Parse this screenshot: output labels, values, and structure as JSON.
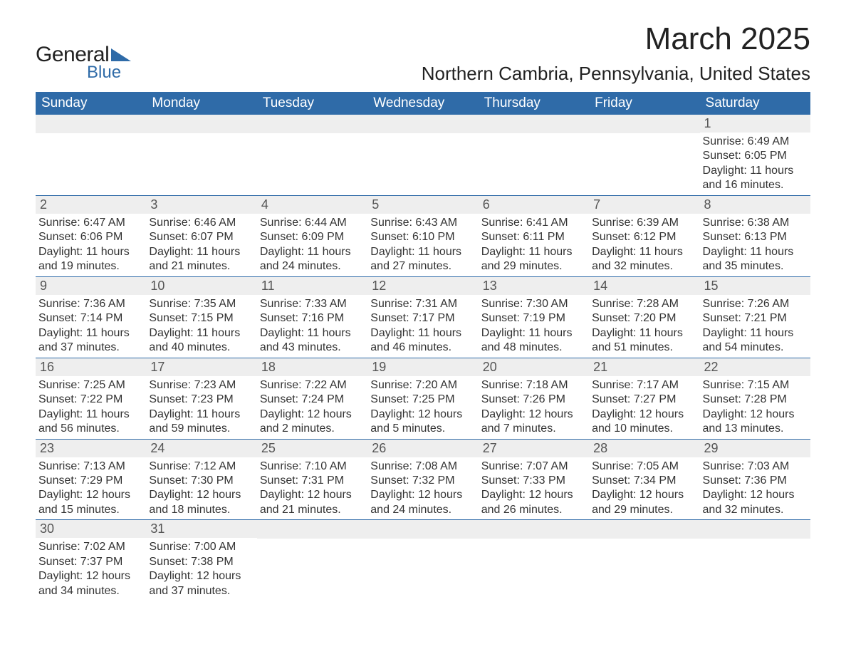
{
  "brand": {
    "word1": "General",
    "word2": "Blue",
    "word1_color": "#222222",
    "word2_color": "#2f6ba8",
    "triangle_color": "#2f6ba8"
  },
  "title": "March 2025",
  "location": "Northern Cambria, Pennsylvania, United States",
  "colors": {
    "header_bg": "#2f6ba8",
    "header_text": "#ffffff",
    "daynum_bg": "#eeeeee",
    "daynum_text": "#555555",
    "body_text": "#333333",
    "row_divider": "#2f6ba8",
    "page_bg": "#ffffff"
  },
  "typography": {
    "title_fontsize": 44,
    "location_fontsize": 26,
    "weekday_fontsize": 19,
    "daynum_fontsize": 18,
    "body_fontsize": 16,
    "font_family": "Arial"
  },
  "weekdays": [
    "Sunday",
    "Monday",
    "Tuesday",
    "Wednesday",
    "Thursday",
    "Friday",
    "Saturday"
  ],
  "weeks": [
    [
      null,
      null,
      null,
      null,
      null,
      null,
      {
        "n": "1",
        "sunrise": "6:49 AM",
        "sunset": "6:05 PM",
        "daylight": "11 hours and 16 minutes."
      }
    ],
    [
      {
        "n": "2",
        "sunrise": "6:47 AM",
        "sunset": "6:06 PM",
        "daylight": "11 hours and 19 minutes."
      },
      {
        "n": "3",
        "sunrise": "6:46 AM",
        "sunset": "6:07 PM",
        "daylight": "11 hours and 21 minutes."
      },
      {
        "n": "4",
        "sunrise": "6:44 AM",
        "sunset": "6:09 PM",
        "daylight": "11 hours and 24 minutes."
      },
      {
        "n": "5",
        "sunrise": "6:43 AM",
        "sunset": "6:10 PM",
        "daylight": "11 hours and 27 minutes."
      },
      {
        "n": "6",
        "sunrise": "6:41 AM",
        "sunset": "6:11 PM",
        "daylight": "11 hours and 29 minutes."
      },
      {
        "n": "7",
        "sunrise": "6:39 AM",
        "sunset": "6:12 PM",
        "daylight": "11 hours and 32 minutes."
      },
      {
        "n": "8",
        "sunrise": "6:38 AM",
        "sunset": "6:13 PM",
        "daylight": "11 hours and 35 minutes."
      }
    ],
    [
      {
        "n": "9",
        "sunrise": "7:36 AM",
        "sunset": "7:14 PM",
        "daylight": "11 hours and 37 minutes."
      },
      {
        "n": "10",
        "sunrise": "7:35 AM",
        "sunset": "7:15 PM",
        "daylight": "11 hours and 40 minutes."
      },
      {
        "n": "11",
        "sunrise": "7:33 AM",
        "sunset": "7:16 PM",
        "daylight": "11 hours and 43 minutes."
      },
      {
        "n": "12",
        "sunrise": "7:31 AM",
        "sunset": "7:17 PM",
        "daylight": "11 hours and 46 minutes."
      },
      {
        "n": "13",
        "sunrise": "7:30 AM",
        "sunset": "7:19 PM",
        "daylight": "11 hours and 48 minutes."
      },
      {
        "n": "14",
        "sunrise": "7:28 AM",
        "sunset": "7:20 PM",
        "daylight": "11 hours and 51 minutes."
      },
      {
        "n": "15",
        "sunrise": "7:26 AM",
        "sunset": "7:21 PM",
        "daylight": "11 hours and 54 minutes."
      }
    ],
    [
      {
        "n": "16",
        "sunrise": "7:25 AM",
        "sunset": "7:22 PM",
        "daylight": "11 hours and 56 minutes."
      },
      {
        "n": "17",
        "sunrise": "7:23 AM",
        "sunset": "7:23 PM",
        "daylight": "11 hours and 59 minutes."
      },
      {
        "n": "18",
        "sunrise": "7:22 AM",
        "sunset": "7:24 PM",
        "daylight": "12 hours and 2 minutes."
      },
      {
        "n": "19",
        "sunrise": "7:20 AM",
        "sunset": "7:25 PM",
        "daylight": "12 hours and 5 minutes."
      },
      {
        "n": "20",
        "sunrise": "7:18 AM",
        "sunset": "7:26 PM",
        "daylight": "12 hours and 7 minutes."
      },
      {
        "n": "21",
        "sunrise": "7:17 AM",
        "sunset": "7:27 PM",
        "daylight": "12 hours and 10 minutes."
      },
      {
        "n": "22",
        "sunrise": "7:15 AM",
        "sunset": "7:28 PM",
        "daylight": "12 hours and 13 minutes."
      }
    ],
    [
      {
        "n": "23",
        "sunrise": "7:13 AM",
        "sunset": "7:29 PM",
        "daylight": "12 hours and 15 minutes."
      },
      {
        "n": "24",
        "sunrise": "7:12 AM",
        "sunset": "7:30 PM",
        "daylight": "12 hours and 18 minutes."
      },
      {
        "n": "25",
        "sunrise": "7:10 AM",
        "sunset": "7:31 PM",
        "daylight": "12 hours and 21 minutes."
      },
      {
        "n": "26",
        "sunrise": "7:08 AM",
        "sunset": "7:32 PM",
        "daylight": "12 hours and 24 minutes."
      },
      {
        "n": "27",
        "sunrise": "7:07 AM",
        "sunset": "7:33 PM",
        "daylight": "12 hours and 26 minutes."
      },
      {
        "n": "28",
        "sunrise": "7:05 AM",
        "sunset": "7:34 PM",
        "daylight": "12 hours and 29 minutes."
      },
      {
        "n": "29",
        "sunrise": "7:03 AM",
        "sunset": "7:36 PM",
        "daylight": "12 hours and 32 minutes."
      }
    ],
    [
      {
        "n": "30",
        "sunrise": "7:02 AM",
        "sunset": "7:37 PM",
        "daylight": "12 hours and 34 minutes."
      },
      {
        "n": "31",
        "sunrise": "7:00 AM",
        "sunset": "7:38 PM",
        "daylight": "12 hours and 37 minutes."
      },
      null,
      null,
      null,
      null,
      null
    ]
  ],
  "labels": {
    "sunrise_prefix": "Sunrise: ",
    "sunset_prefix": "Sunset: ",
    "daylight_prefix": "Daylight: "
  }
}
